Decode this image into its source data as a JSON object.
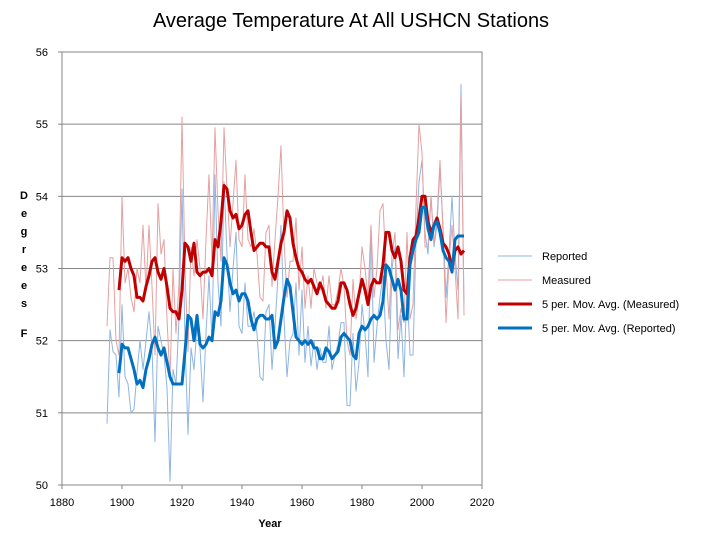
{
  "chart_data": {
    "type": "line",
    "title": "Average Temperature At All USHCN Stations",
    "xlabel": "Year",
    "ylabel": "Degrees F",
    "xlim": [
      1880,
      2020
    ],
    "ylim": [
      50,
      56
    ],
    "xticks": [
      1880,
      1900,
      1920,
      1940,
      1960,
      1980,
      2000,
      2020
    ],
    "yticks": [
      50,
      51,
      52,
      53,
      54,
      55,
      56
    ],
    "grid": "horizontal",
    "legend_position": "right",
    "x": [
      1895,
      1896,
      1897,
      1898,
      1899,
      1900,
      1901,
      1902,
      1903,
      1904,
      1905,
      1906,
      1907,
      1908,
      1909,
      1910,
      1911,
      1912,
      1913,
      1914,
      1915,
      1916,
      1917,
      1918,
      1919,
      1920,
      1921,
      1922,
      1923,
      1924,
      1925,
      1926,
      1927,
      1928,
      1929,
      1930,
      1931,
      1932,
      1933,
      1934,
      1935,
      1936,
      1937,
      1938,
      1939,
      1940,
      1941,
      1942,
      1943,
      1944,
      1945,
      1946,
      1947,
      1948,
      1949,
      1950,
      1951,
      1952,
      1953,
      1954,
      1955,
      1956,
      1957,
      1958,
      1959,
      1960,
      1961,
      1962,
      1963,
      1964,
      1965,
      1966,
      1967,
      1968,
      1969,
      1970,
      1971,
      1972,
      1973,
      1974,
      1975,
      1976,
      1977,
      1978,
      1979,
      1980,
      1981,
      1982,
      1983,
      1984,
      1985,
      1986,
      1987,
      1988,
      1989,
      1990,
      1991,
      1992,
      1993,
      1994,
      1995,
      1996,
      1997,
      1998,
      1999,
      2000,
      2001,
      2002,
      2003,
      2004,
      2005,
      2006,
      2007,
      2008,
      2009,
      2010,
      2011,
      2012,
      2013,
      2014
    ],
    "series": [
      {
        "name": "Reported",
        "color": "#8eb4e3",
        "width": 1,
        "values": [
          50.85,
          52.15,
          51.85,
          51.8,
          51.22,
          52.5,
          51.5,
          51.4,
          51.0,
          51.05,
          51.55,
          52.0,
          51.6,
          52.0,
          52.4,
          51.9,
          50.6,
          52.2,
          52.0,
          51.8,
          51.35,
          50.05,
          51.6,
          51.4,
          52.3,
          54.1,
          52.0,
          50.7,
          51.9,
          51.6,
          52.2,
          51.9,
          51.15,
          52.1,
          52.9,
          52.0,
          54.3,
          52.8,
          52.2,
          54.2,
          53.2,
          52.4,
          53.0,
          53.5,
          52.2,
          52.1,
          52.8,
          52.2,
          52.2,
          52.4,
          52.1,
          51.5,
          51.45,
          52.4,
          52.5,
          51.6,
          52.2,
          52.9,
          53.6,
          52.3,
          51.5,
          52.0,
          52.1,
          52.8,
          51.8,
          52.7,
          51.7,
          52.2,
          51.65,
          52.0,
          51.6,
          51.9,
          51.7,
          51.7,
          52.2,
          51.6,
          51.8,
          51.95,
          52.25,
          52.25,
          51.1,
          51.1,
          52.1,
          51.3,
          51.7,
          52.5,
          52.1,
          51.5,
          53.6,
          51.7,
          52.2,
          52.6,
          52.9,
          52.0,
          51.6,
          53.0,
          53.3,
          51.75,
          52.35,
          51.5,
          52.8,
          51.8,
          51.8,
          53.4,
          54.2,
          54.5,
          53.5,
          53.2,
          54.0,
          53.3,
          53.6,
          54.4,
          53.6,
          52.6,
          53.2,
          54.0,
          53.2,
          52.7,
          55.55,
          52.5
        ],
        "labels": {
          "legend": "Reported"
        }
      },
      {
        "name": "Measured",
        "color": "#e6a0a0",
        "width": 1,
        "values": [
          52.2,
          53.15,
          53.15,
          52.0,
          51.8,
          54.0,
          52.8,
          53.0,
          52.6,
          52.4,
          53.0,
          52.8,
          53.6,
          52.7,
          53.6,
          52.75,
          51.8,
          53.9,
          53.2,
          53.4,
          52.3,
          51.45,
          53.0,
          52.1,
          52.8,
          55.1,
          53.0,
          51.85,
          53.3,
          52.9,
          53.4,
          53.0,
          52.3,
          53.4,
          54.3,
          53.1,
          54.95,
          53.8,
          53.1,
          54.95,
          54.1,
          53.3,
          53.9,
          54.5,
          53.4,
          53.3,
          54.3,
          53.4,
          53.3,
          53.55,
          53.2,
          52.6,
          52.55,
          53.5,
          53.6,
          52.75,
          53.4,
          54.0,
          54.7,
          53.4,
          52.6,
          53.1,
          53.1,
          53.7,
          52.7,
          53.3,
          52.45,
          52.9,
          52.45,
          53.0,
          52.8,
          52.7,
          52.9,
          52.45,
          52.9,
          52.5,
          52.5,
          52.7,
          53.0,
          52.75,
          52.0,
          51.8,
          52.85,
          52.3,
          52.6,
          53.3,
          53.0,
          52.6,
          53.6,
          52.6,
          53.0,
          53.8,
          53.9,
          53.0,
          52.3,
          53.2,
          53.5,
          52.15,
          52.45,
          52.25,
          53.5,
          52.3,
          52.5,
          53.85,
          55.0,
          54.6,
          53.3,
          53.3,
          54.0,
          53.35,
          53.7,
          54.5,
          53.5,
          52.25,
          53.1,
          53.6,
          53.0,
          52.3,
          55.4,
          52.35
        ],
        "labels": {
          "legend": "Measured"
        }
      },
      {
        "name": "5 per. Mov. Avg. (Measured)",
        "color": "#c00000",
        "width": 3,
        "values": [
          null,
          null,
          null,
          null,
          52.7,
          53.15,
          53.1,
          53.15,
          53.0,
          52.9,
          52.6,
          52.6,
          52.55,
          52.75,
          52.9,
          53.1,
          53.15,
          52.95,
          52.85,
          53.0,
          52.75,
          52.45,
          52.4,
          52.4,
          52.3,
          52.7,
          53.35,
          53.3,
          53.1,
          53.35,
          52.95,
          52.9,
          52.95,
          52.95,
          53.0,
          52.9,
          53.4,
          53.3,
          53.65,
          54.15,
          54.1,
          53.8,
          53.7,
          53.75,
          53.55,
          53.6,
          53.75,
          53.8,
          53.5,
          53.25,
          53.3,
          53.35,
          53.35,
          53.3,
          53.3,
          52.95,
          52.85,
          53.1,
          53.35,
          53.5,
          53.8,
          53.7,
          53.35,
          53.15,
          53.0,
          52.95,
          52.85,
          52.8,
          52.85,
          52.75,
          52.65,
          52.8,
          52.7,
          52.55,
          52.5,
          52.45,
          52.45,
          52.55,
          52.8,
          52.8,
          52.7,
          52.5,
          52.35,
          52.45,
          52.65,
          52.85,
          52.7,
          52.5,
          52.75,
          52.85,
          52.8,
          52.8,
          53.05,
          53.5,
          53.5,
          53.25,
          53.15,
          53.3,
          53.1,
          52.7,
          52.65,
          53.15,
          53.4,
          53.45,
          53.7,
          54.0,
          54.0,
          53.65,
          53.5,
          53.6,
          53.7,
          53.55,
          53.35,
          53.3,
          53.2,
          53.0,
          53.25,
          53.3,
          53.2,
          53.25
        ]
      },
      {
        "name": "5 per. Mov. Avg. (Reported)",
        "color": "#0070c0",
        "width": 3,
        "values": [
          null,
          null,
          null,
          null,
          51.55,
          51.95,
          51.9,
          51.9,
          51.75,
          51.6,
          51.4,
          51.45,
          51.35,
          51.6,
          51.75,
          51.95,
          52.05,
          51.9,
          51.8,
          51.9,
          51.7,
          51.5,
          51.4,
          51.4,
          51.4,
          51.4,
          51.85,
          52.35,
          52.3,
          52.0,
          52.35,
          51.95,
          51.9,
          51.95,
          52.05,
          52.0,
          52.4,
          52.35,
          52.55,
          53.15,
          53.05,
          52.8,
          52.65,
          52.7,
          52.55,
          52.65,
          52.65,
          52.55,
          52.3,
          52.15,
          52.3,
          52.35,
          52.35,
          52.3,
          52.3,
          52.35,
          51.9,
          52.0,
          52.3,
          52.6,
          52.85,
          52.75,
          52.4,
          52.05,
          52.0,
          51.95,
          52.0,
          51.95,
          52.0,
          51.9,
          51.9,
          51.75,
          51.75,
          51.9,
          51.85,
          51.75,
          51.8,
          51.85,
          52.05,
          52.1,
          52.05,
          52.0,
          51.8,
          51.75,
          52.1,
          52.2,
          52.15,
          52.2,
          52.3,
          52.35,
          52.3,
          52.35,
          52.55,
          53.05,
          53.0,
          52.85,
          52.7,
          52.85,
          52.7,
          52.3,
          52.3,
          53.05,
          53.25,
          53.4,
          53.5,
          53.85,
          53.85,
          53.55,
          53.4,
          53.6,
          53.65,
          53.5,
          53.25,
          53.15,
          53.1,
          52.95,
          53.4,
          53.45,
          53.45,
          53.45
        ]
      }
    ]
  }
}
